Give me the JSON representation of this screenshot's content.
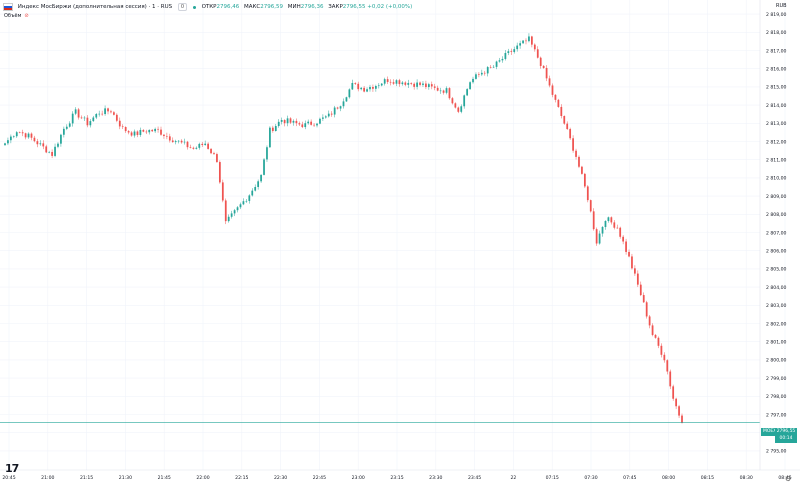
{
  "header": {
    "symbol": "Индекс МосБиржи (дополнительная сессия) · 1 · RUS",
    "interval_badge": "0",
    "open_label": "ОТКР",
    "open_value": "2796,46",
    "high_label": "МАКС",
    "high_value": "2796,59",
    "low_label": "МИН",
    "low_value": "2796,36",
    "close_label": "ЗАКР",
    "close_value": "2796,55 +0,02 (+0,00%)",
    "volume_label": "Объём",
    "currency": "RUB"
  },
  "price_tag": {
    "left_label": "MOEX",
    "price": "2796,55",
    "countdown": "00:14"
  },
  "colors": {
    "up": "#26a69a",
    "down": "#ef5350",
    "grid": "#f0f3fa",
    "axis_text": "#131722"
  },
  "chart_data": {
    "type": "candlestick",
    "y_ticks": [
      2819.0,
      2818.0,
      2817.0,
      2816.0,
      2815.0,
      2814.0,
      2813.0,
      2812.0,
      2811.0,
      2810.0,
      2809.0,
      2808.0,
      2807.0,
      2806.0,
      2805.0,
      2804.0,
      2803.0,
      2802.0,
      2801.0,
      2800.0,
      2799.0,
      2798.0,
      2797.0,
      2796.0,
      2795.0
    ],
    "y_tick_labels": [
      "2 819,00",
      "2 818,00",
      "2 817,00",
      "2 816,00",
      "2 815,00",
      "2 814,00",
      "2 813,00",
      "2 812,00",
      "2 811,00",
      "2 810,00",
      "2 809,00",
      "2 808,00",
      "2 807,00",
      "2 806,00",
      "2 805,00",
      "2 804,00",
      "2 803,00",
      "2 802,00",
      "2 801,00",
      "2 800,00",
      "2 799,00",
      "2 798,00",
      "2 797,00",
      "2 796,00",
      "2 795,00"
    ],
    "ylim": [
      2794.5,
      2819.5
    ],
    "x_tick_labels": [
      "20:45",
      "21:00",
      "21:15",
      "21:30",
      "21:45",
      "22:00",
      "22:15",
      "22:30",
      "22:45",
      "23:00",
      "23:15",
      "23:30",
      "23:45",
      "22",
      "07:15",
      "07:30",
      "07:45",
      "08:00",
      "08:15",
      "08:30",
      "08:45"
    ],
    "current_price": 2796.55,
    "close_path": [
      {
        "i": 0,
        "c": 2811.9
      },
      {
        "i": 4,
        "c": 2812.6
      },
      {
        "i": 8,
        "c": 2812.3
      },
      {
        "i": 12,
        "c": 2811.8
      },
      {
        "i": 16,
        "c": 2811.3
      },
      {
        "i": 20,
        "c": 2812.7
      },
      {
        "i": 24,
        "c": 2813.6
      },
      {
        "i": 28,
        "c": 2813.0
      },
      {
        "i": 32,
        "c": 2813.6
      },
      {
        "i": 36,
        "c": 2813.7
      },
      {
        "i": 40,
        "c": 2812.7
      },
      {
        "i": 44,
        "c": 2812.4
      },
      {
        "i": 48,
        "c": 2812.6
      },
      {
        "i": 52,
        "c": 2812.6
      },
      {
        "i": 56,
        "c": 2812.2
      },
      {
        "i": 60,
        "c": 2811.9
      },
      {
        "i": 64,
        "c": 2811.6
      },
      {
        "i": 68,
        "c": 2811.9
      },
      {
        "i": 72,
        "c": 2811.0
      },
      {
        "i": 75,
        "c": 2807.5
      },
      {
        "i": 79,
        "c": 2808.3
      },
      {
        "i": 83,
        "c": 2809.1
      },
      {
        "i": 87,
        "c": 2810.1
      },
      {
        "i": 90,
        "c": 2812.6
      },
      {
        "i": 94,
        "c": 2813.2
      },
      {
        "i": 98,
        "c": 2813.0
      },
      {
        "i": 102,
        "c": 2812.9
      },
      {
        "i": 106,
        "c": 2813.1
      },
      {
        "i": 110,
        "c": 2813.4
      },
      {
        "i": 114,
        "c": 2814.1
      },
      {
        "i": 118,
        "c": 2815.1
      },
      {
        "i": 122,
        "c": 2814.9
      },
      {
        "i": 126,
        "c": 2815.1
      },
      {
        "i": 130,
        "c": 2815.4
      },
      {
        "i": 134,
        "c": 2815.3
      },
      {
        "i": 138,
        "c": 2815.2
      },
      {
        "i": 142,
        "c": 2815.1
      },
      {
        "i": 146,
        "c": 2814.9
      },
      {
        "i": 150,
        "c": 2814.8
      },
      {
        "i": 154,
        "c": 2813.7
      },
      {
        "i": 158,
        "c": 2815.3
      },
      {
        "i": 162,
        "c": 2815.8
      },
      {
        "i": 166,
        "c": 2816.1
      },
      {
        "i": 170,
        "c": 2816.7
      },
      {
        "i": 174,
        "c": 2817.2
      },
      {
        "i": 178,
        "c": 2817.6
      },
      {
        "i": 182,
        "c": 2816.3
      },
      {
        "i": 186,
        "c": 2814.6
      },
      {
        "i": 190,
        "c": 2813.0
      },
      {
        "i": 194,
        "c": 2811.2
      },
      {
        "i": 198,
        "c": 2808.9
      },
      {
        "i": 201,
        "c": 2806.5
      },
      {
        "i": 204,
        "c": 2807.8
      },
      {
        "i": 208,
        "c": 2807.3
      },
      {
        "i": 212,
        "c": 2805.6
      },
      {
        "i": 216,
        "c": 2803.6
      },
      {
        "i": 220,
        "c": 2801.4
      },
      {
        "i": 224,
        "c": 2800.1
      },
      {
        "i": 227,
        "c": 2797.9
      },
      {
        "i": 230,
        "c": 2796.55
      }
    ]
  }
}
